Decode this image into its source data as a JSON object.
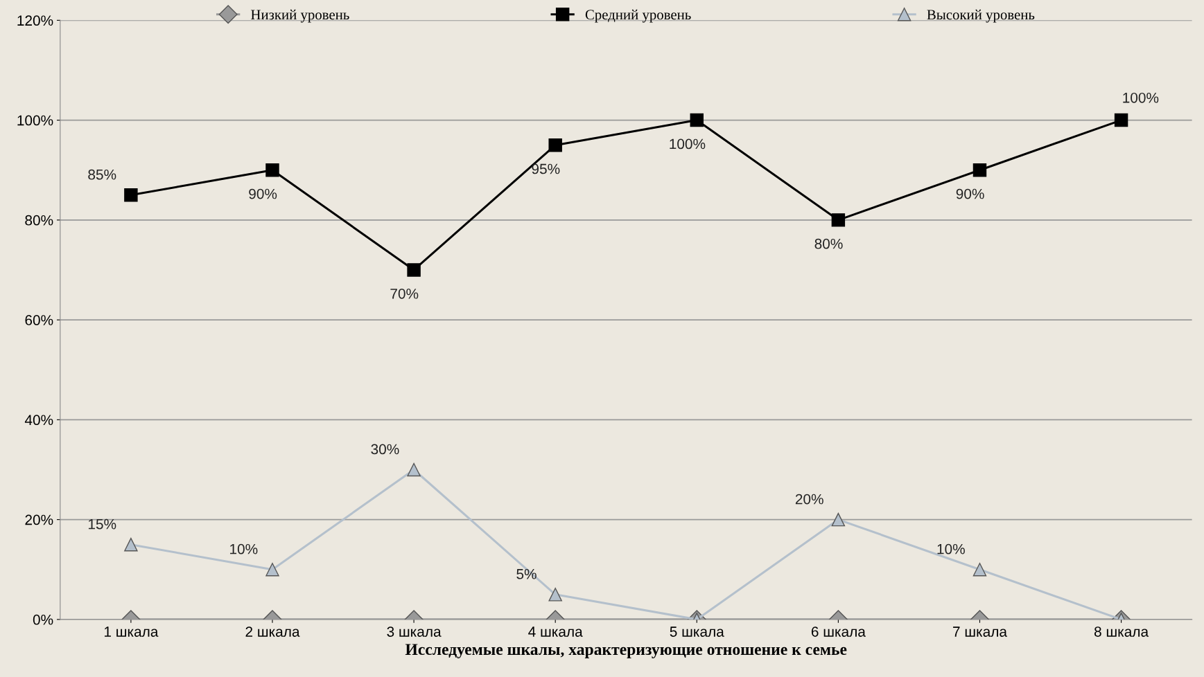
{
  "chart_data": {
    "type": "line",
    "xlabel": "Исследуемые шкалы, характеризующие отношение к семье",
    "categories": [
      "1 шкала",
      "2 шкала",
      "3 шкала",
      "4 шкала",
      "5 шкала",
      "6 шкала",
      "7 шкала",
      "8 шкала"
    ],
    "series": [
      {
        "name": "Низкий уровень",
        "color": "#999999",
        "marker": "diamond",
        "values": [
          0,
          0,
          0,
          0,
          0,
          0,
          0,
          0
        ]
      },
      {
        "name": "Средний уровень",
        "color": "#000000",
        "marker": "square",
        "values": [
          85,
          90,
          70,
          95,
          100,
          80,
          90,
          100
        ],
        "value_labels": [
          "85%",
          "90%",
          "70%",
          "95%",
          "100%",
          "80%",
          "90%",
          "100%"
        ]
      },
      {
        "name": "Высокий уровень",
        "color": "#b4c0cc",
        "marker": "triangle",
        "values": [
          15,
          10,
          30,
          5,
          0,
          20,
          10,
          0
        ],
        "value_labels": [
          "15%",
          "10%",
          "30%",
          "5%",
          null,
          "20%",
          "10%",
          null
        ]
      }
    ],
    "ylim": [
      0,
      120
    ],
    "yticks": [
      {
        "value": 0,
        "label": "0%"
      },
      {
        "value": 20,
        "label": "20%"
      },
      {
        "value": 40,
        "label": "40%"
      },
      {
        "value": 60,
        "label": "60%"
      },
      {
        "value": 80,
        "label": "80%"
      },
      {
        "value": 100,
        "label": "100%"
      },
      {
        "value": 120,
        "label": "120%"
      }
    ],
    "grid": "y",
    "legend": "top",
    "line_style": "solid"
  }
}
